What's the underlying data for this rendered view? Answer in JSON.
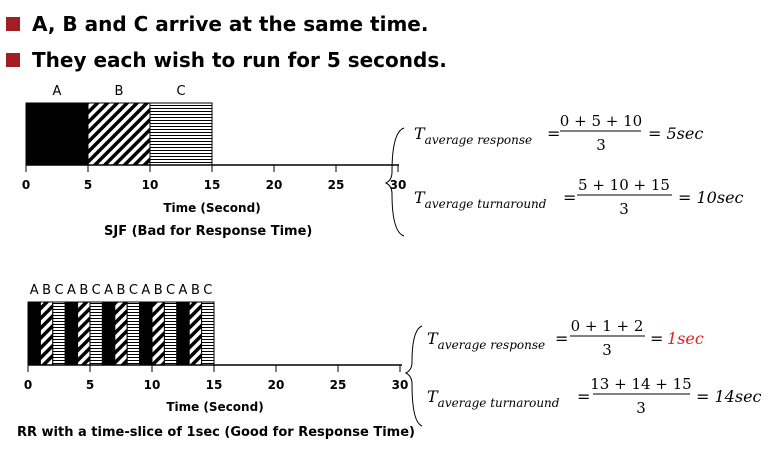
{
  "bullets": [
    "A, B and C arrive at the same time.",
    "They each wish to run for 5 seconds."
  ],
  "sjf": {
    "process_labels": [
      "A",
      "B",
      "C"
    ],
    "segments": [
      {
        "process": "A",
        "start": 0,
        "end": 5,
        "fill": "solid"
      },
      {
        "process": "B",
        "start": 5,
        "end": 10,
        "fill": "diagonal"
      },
      {
        "process": "C",
        "start": 10,
        "end": 15,
        "fill": "horizontal"
      }
    ],
    "ticks": [
      "0",
      "5",
      "10",
      "15",
      "20",
      "25",
      "30"
    ],
    "axis_label": "Time (Second)",
    "caption": "SJF (Bad for Response Time)",
    "response": {
      "symbol": "T",
      "subscript": "average response",
      "numerator": "0 + 5 + 10",
      "denominator": "3",
      "result": "= 5sec"
    },
    "turnaround": {
      "symbol": "T",
      "subscript": "average turnaround",
      "numerator": "5 + 10 + 15",
      "denominator": "3",
      "result": "= 10sec"
    }
  },
  "rr": {
    "process_labels": [
      "A",
      "B",
      "C",
      "A",
      "B",
      "C",
      "A",
      "B",
      "C",
      "A",
      "B",
      "C",
      "A",
      "B",
      "C"
    ],
    "slice_sequence": [
      "A",
      "B",
      "C",
      "A",
      "B",
      "C",
      "A",
      "B",
      "C",
      "A",
      "B",
      "C",
      "A",
      "B",
      "C"
    ],
    "ticks": [
      "0",
      "5",
      "10",
      "15",
      "20",
      "25",
      "30"
    ],
    "axis_label": "Time (Second)",
    "caption": "RR with a time-slice of 1sec (Good for Response Time)",
    "response": {
      "symbol": "T",
      "subscript": "average response",
      "numerator": "0 + 1 + 2",
      "denominator": "3",
      "equals": "=",
      "result": "1sec",
      "result_color": "#e02020"
    },
    "turnaround": {
      "symbol": "T",
      "subscript": "average turnaround",
      "numerator": "13 + 14 + 15",
      "denominator": "3",
      "result": "= 14sec"
    }
  },
  "colors": {
    "bullet": "#a11f24",
    "highlight": "#e02020"
  }
}
